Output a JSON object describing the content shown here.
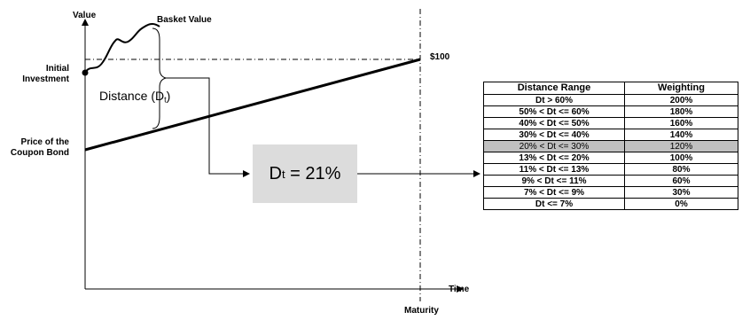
{
  "labels": {
    "y_axis": "Value",
    "x_axis": "Time",
    "basket_value": "Basket Value",
    "initial_investment_line1": "Initial",
    "initial_investment_line2": "Investment",
    "coupon_bond_line1": "Price of the",
    "coupon_bond_line2": "Coupon Bond",
    "price_100": "$100",
    "maturity": "Maturity",
    "distance": "Distance (D",
    "distance_sub": "t",
    "distance_close": ")"
  },
  "result": {
    "symbol": "D",
    "sub": "t",
    "equals": " = 21%"
  },
  "table": {
    "headers": [
      "Distance Range",
      "Weighting"
    ],
    "highlight_row": 4,
    "rows": [
      [
        "Dt > 60%",
        "200%"
      ],
      [
        "50% < Dt <= 60%",
        "180%"
      ],
      [
        "40% < Dt <= 50%",
        "160%"
      ],
      [
        "30% < Dt <= 40%",
        "140%"
      ],
      [
        "20% < Dt <= 30%",
        "120%"
      ],
      [
        "13% < Dt <= 20%",
        "100%"
      ],
      [
        "11% < Dt <= 13%",
        "80%"
      ],
      [
        "9% < Dt <= 11%",
        "60%"
      ],
      [
        "7% < Dt <= 9%",
        "30%"
      ],
      [
        "Dt <= 7%",
        "0%"
      ]
    ]
  },
  "colors": {
    "highlight": "#c0c0c0",
    "result_box": "#dcdcdc"
  }
}
